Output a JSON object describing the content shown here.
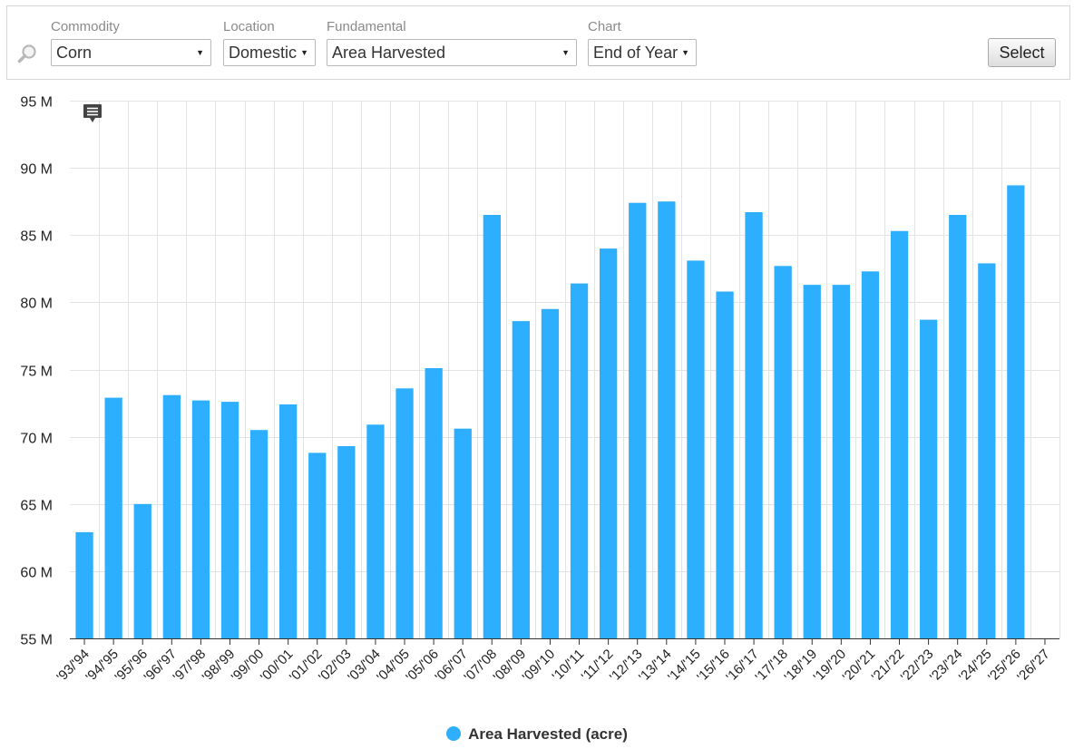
{
  "toolbar": {
    "commodity": {
      "label": "Commodity",
      "value": "Corn"
    },
    "location": {
      "label": "Location",
      "value": "Domestic"
    },
    "fundamental": {
      "label": "Fundamental",
      "value": "Area Harvested"
    },
    "chart": {
      "label": "Chart",
      "value": "End of Year"
    },
    "select_label": "Select"
  },
  "colors": {
    "bar": "#2eaeff",
    "grid": "#e3e3e3",
    "axis": "#333333"
  },
  "chart_data": {
    "type": "bar",
    "title": "",
    "xlabel": "",
    "ylabel": "",
    "ylim": [
      55000000,
      95000000
    ],
    "yticks": [
      55000000,
      60000000,
      65000000,
      70000000,
      75000000,
      80000000,
      85000000,
      90000000,
      95000000
    ],
    "ytick_labels": [
      "55 M",
      "60 M",
      "65 M",
      "70 M",
      "75 M",
      "80 M",
      "85 M",
      "90 M",
      "95 M"
    ],
    "grid": true,
    "legend_position": "bottom-center",
    "categories": [
      "'93/'94",
      "'94/'95",
      "'95/'96",
      "'96/'97",
      "'97/'98",
      "'98/'99",
      "'99/'00",
      "'00/'01",
      "'01/'02",
      "'02/'03",
      "'03/'04",
      "'04/'05",
      "'05/'06",
      "'06/'07",
      "'07/'08",
      "'08/'09",
      "'09/'10",
      "'10/'11",
      "'11/'12",
      "'12/'13",
      "'13/'14",
      "'14/'15",
      "'15/'16",
      "'16/'17",
      "'17/'18",
      "'18/'19",
      "'19/'20",
      "'20/'21",
      "'21/'22",
      "'22/'23",
      "'23/'24",
      "'24/'25",
      "'25/'26",
      "'26/'27"
    ],
    "series": [
      {
        "name": "Area Harvested (acre)",
        "values": [
          62900000,
          72900000,
          65000000,
          73100000,
          72700000,
          72600000,
          70500000,
          72400000,
          68800000,
          69300000,
          70900000,
          73600000,
          75100000,
          70600000,
          86500000,
          78600000,
          79500000,
          81400000,
          84000000,
          87400000,
          87500000,
          83100000,
          80800000,
          86700000,
          82700000,
          81300000,
          81300000,
          82300000,
          85300000,
          78700000,
          86500000,
          82900000,
          88700000,
          null
        ]
      }
    ]
  }
}
